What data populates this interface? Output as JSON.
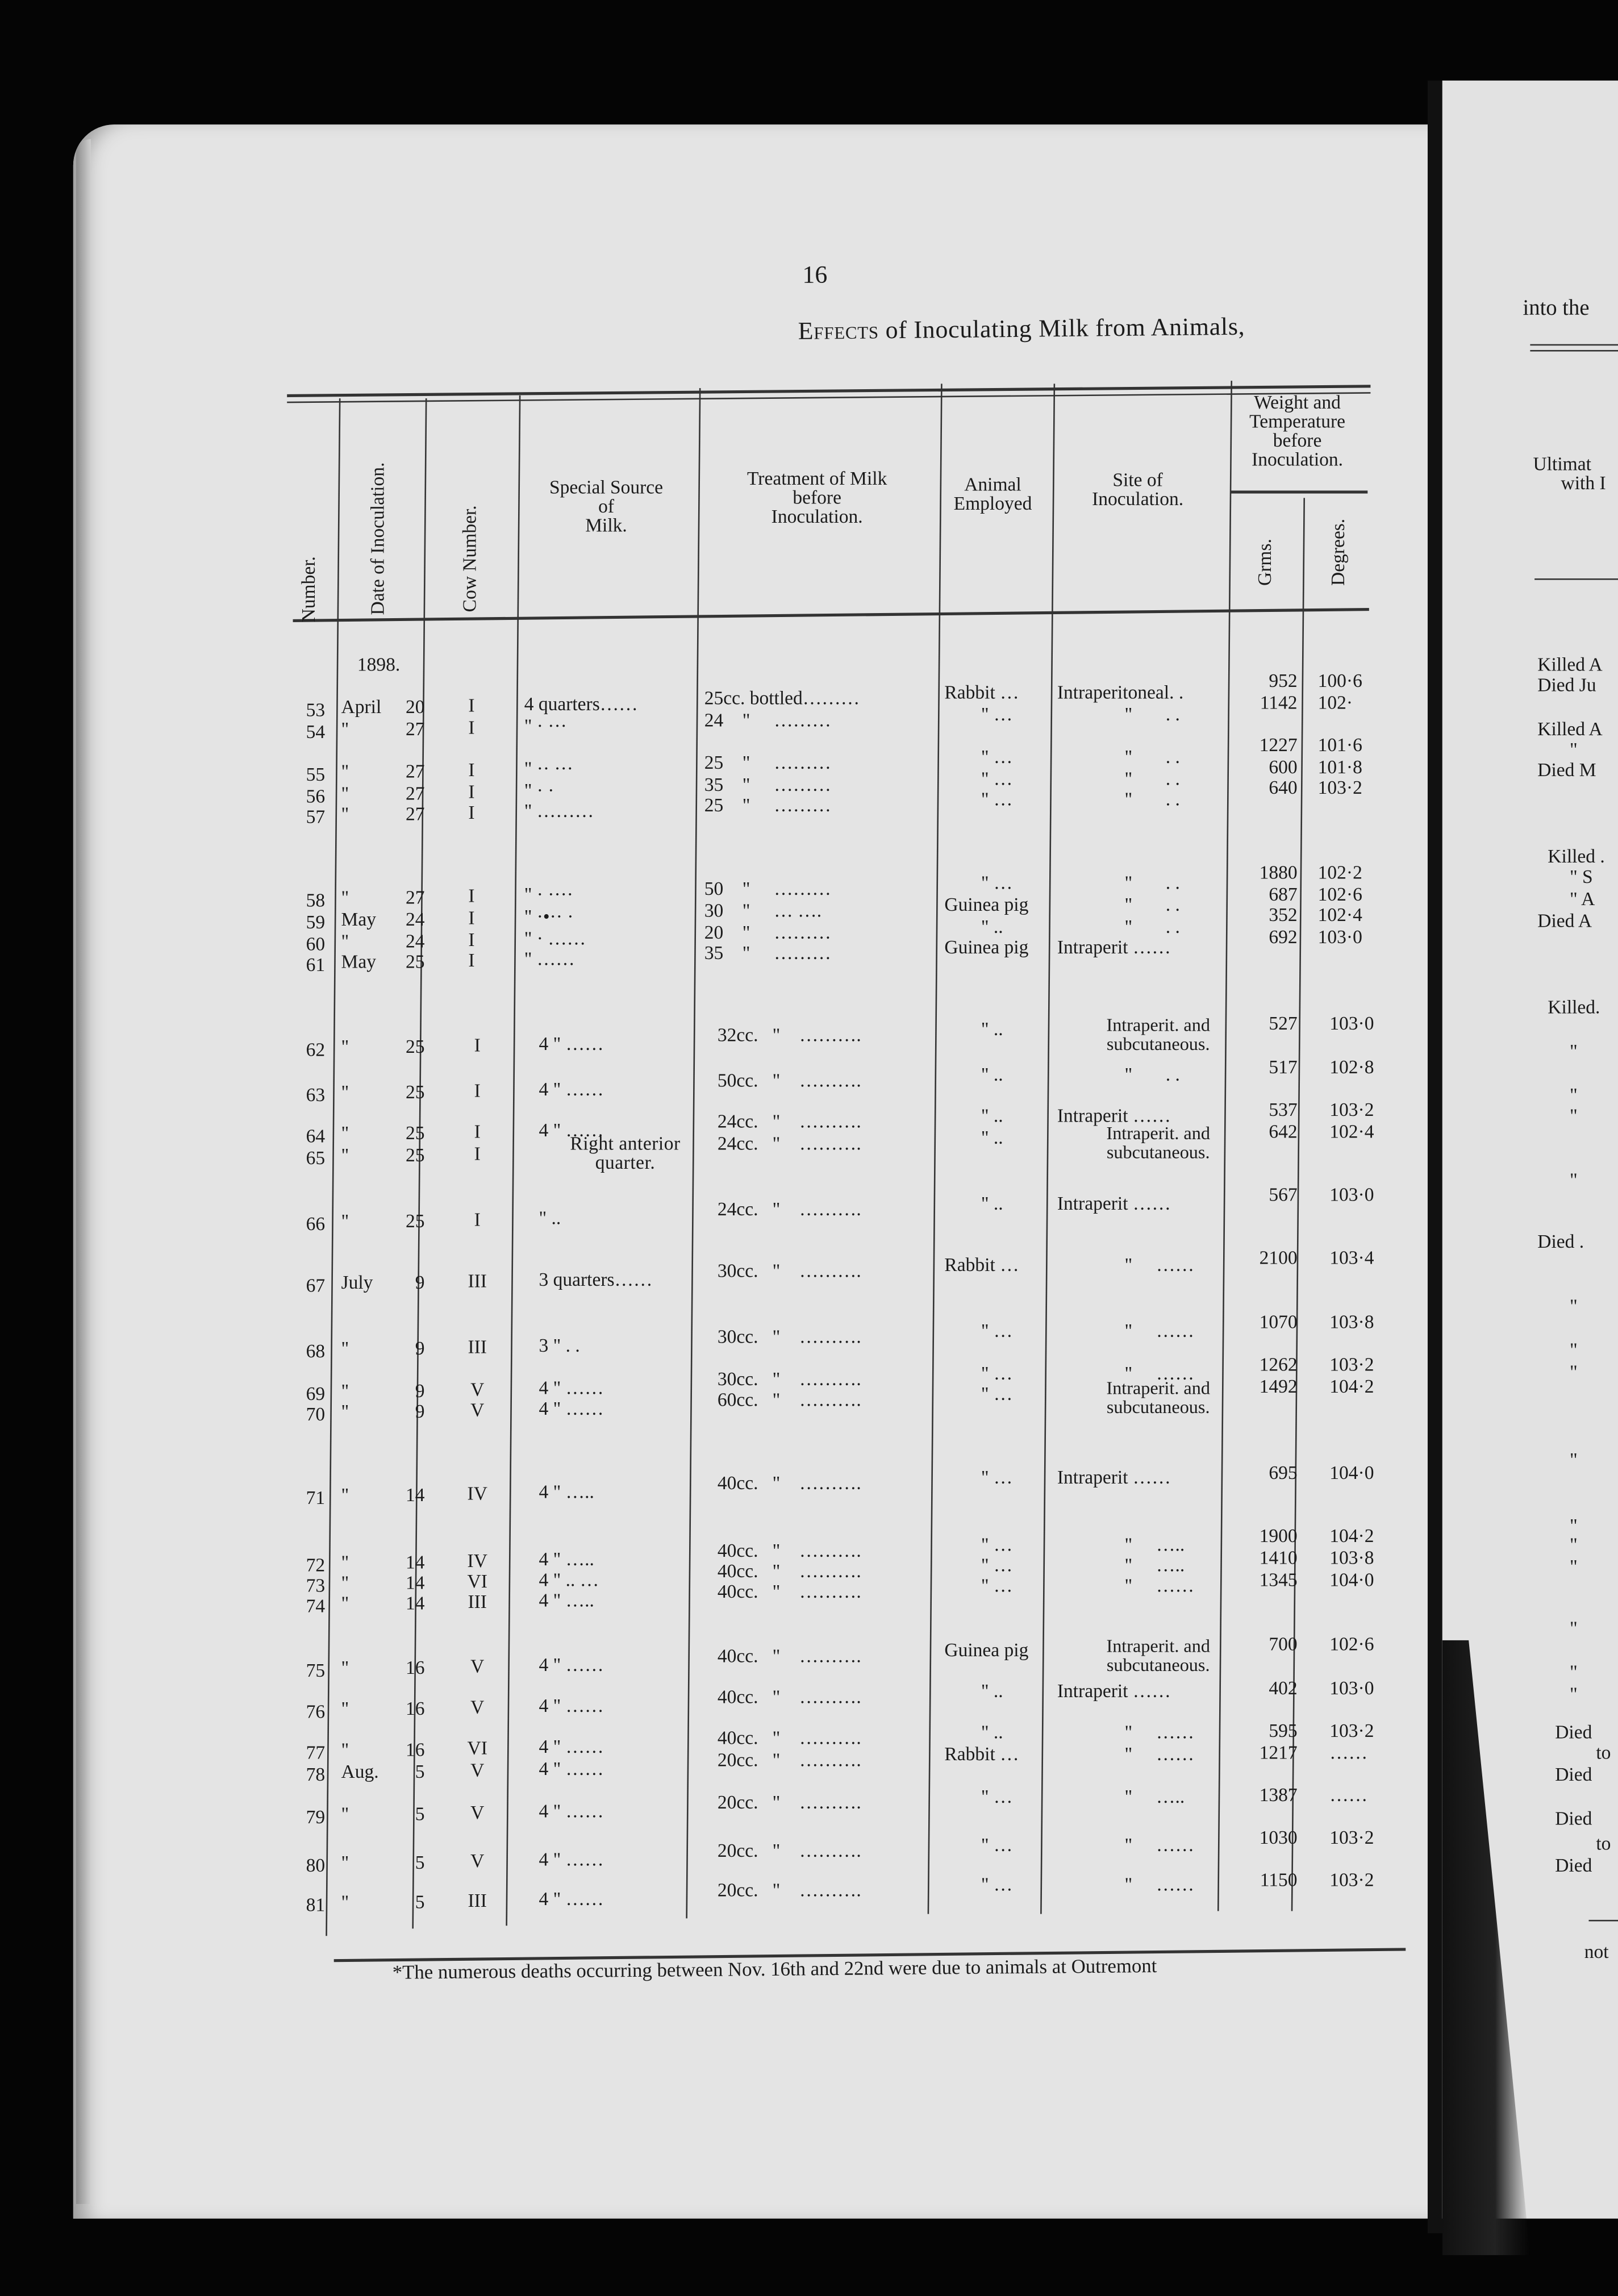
{
  "page_number": "16",
  "title": {
    "small_caps": "Effects",
    "rest": "of Inoculating Milk from Animals,"
  },
  "columns": {
    "number": "Number.",
    "date": "Date of Inoculation.",
    "cow": "Cow Number.",
    "source": [
      "Special Source",
      "of",
      "Milk."
    ],
    "treatment": [
      "Treatment of Milk",
      "before",
      "Inoculation."
    ],
    "animal": [
      "Animal",
      "Employed"
    ],
    "site": [
      "Site of",
      "Inoculation."
    ],
    "weight_temp": [
      "Weight and",
      "Temperature",
      "before",
      "Inoculation."
    ],
    "grms": "Grms.",
    "degrees": "Degrees."
  },
  "year": "1898.",
  "rows": [
    {
      "num": "53",
      "month": "April",
      "day": "20",
      "cow": "I",
      "source": "4 quarters……",
      "treatment": "25cc. bottled………",
      "animal": "Rabbit …",
      "site": "Intraperitoneal. .",
      "grms": "952",
      "deg": "100·6"
    },
    {
      "num": "54",
      "month": "\"",
      "day": "27",
      "cow": "I",
      "source": "\"   · ···",
      "treatment": "24    \"     ………",
      "animal": "\" …",
      "site": "\"       . .",
      "grms": "1142",
      "deg": "102·"
    },
    {
      "num": "55",
      "month": "\"",
      "day": "27",
      "cow": "I",
      "source": "\"   ·· ···",
      "treatment": "25    \"     ………",
      "animal": "\" …",
      "site": "\"       . .",
      "grms": "1227",
      "deg": "101·6"
    },
    {
      "num": "56",
      "month": "\"",
      "day": "27",
      "cow": "I",
      "source": "\"   ·  ·",
      "treatment": "35    \"     ………",
      "animal": "\" …",
      "site": "\"       . .",
      "grms": "600",
      "deg": "101·8"
    },
    {
      "num": "57",
      "month": "\"",
      "day": "27",
      "cow": "I",
      "source": "\"   ………",
      "treatment": "25    \"     ………",
      "animal": "\" …",
      "site": "\"       . .",
      "grms": "640",
      "deg": "103·2"
    },
    {
      "num": "58",
      "month": "\"",
      "day": "27",
      "cow": "I",
      "source": "\"   · ····",
      "treatment": "50    \"     ………",
      "animal": "\" …",
      "site": "\"       . .",
      "grms": "1880",
      "deg": "102·2"
    },
    {
      "num": "59",
      "month": "May",
      "day": "24",
      "cow": "I",
      "source": "\"   ·•·· ·",
      "treatment": "30    \"     … ….",
      "animal": "Guinea pig",
      "site": "\"       . .",
      "grms": "687",
      "deg": "102·6"
    },
    {
      "num": "60",
      "month": "\"",
      "day": "24",
      "cow": "I",
      "source": "\"   · ……",
      "treatment": "20    \"     ………",
      "animal": "\" ..",
      "site": "\"       . .",
      "grms": "352",
      "deg": "102·4"
    },
    {
      "num": "61",
      "month": "May",
      "day": "25",
      "cow": "I",
      "source": "\"   ……",
      "treatment": "35    \"     ………",
      "animal": "Guinea pig",
      "site": "Intraperit ……",
      "grms": "692",
      "deg": "103·0"
    },
    {
      "num": "62",
      "month": "\"",
      "day": "25",
      "cow": "I",
      "source": "4   \"    ……",
      "treatment": "32cc.   \"    ……….",
      "animal": "\" ..",
      "site": "Intraperit. and subcutaneous.",
      "grms": "527",
      "deg": "103·0"
    },
    {
      "num": "63",
      "month": "\"",
      "day": "25",
      "cow": "I",
      "source": "4   \"    ……",
      "treatment": "50cc.   \"    ……….",
      "animal": "\" ..",
      "site": "\"       . .",
      "grms": "517",
      "deg": "102·8"
    },
    {
      "num": "64",
      "month": "\"",
      "day": "25",
      "cow": "I",
      "source": "4   \"    ……",
      "treatment": "24cc.   \"    ……….",
      "animal": "\" ..",
      "site": "Intraperit ……",
      "grms": "537",
      "deg": "103·2"
    },
    {
      "num": "65",
      "month": "\"",
      "day": "25",
      "cow": "I",
      "source": "Right anterior quarter.",
      "treatment": "24cc.   \"    ……….",
      "animal": "\" ..",
      "site": "Intraperit. and subcutaneous.",
      "grms": "642",
      "deg": "102·4"
    },
    {
      "num": "66",
      "month": "\"",
      "day": "25",
      "cow": "I",
      "source": "\"    ..",
      "treatment": "24cc.   \"    ……….",
      "animal": "\" ..",
      "site": "Intraperit ……",
      "grms": "567",
      "deg": "103·0"
    },
    {
      "num": "67",
      "month": "July",
      "day": "9",
      "cow": "III",
      "source": "3 quarters……",
      "treatment": "30cc.   \"    ……….",
      "animal": "Rabbit …",
      "site": "\"     ……",
      "grms": "2100",
      "deg": "103·4"
    },
    {
      "num": "68",
      "month": "\"",
      "day": "9",
      "cow": "III",
      "source": "3   \"    . .",
      "treatment": "30cc.   \"    ……….",
      "animal": "\" …",
      "site": "\"     ……",
      "grms": "1070",
      "deg": "103·8"
    },
    {
      "num": "69",
      "month": "\"",
      "day": "9",
      "cow": "V",
      "source": "4   \"    ……",
      "treatment": "30cc.   \"    ……….",
      "animal": "\" …",
      "site": "\"     ……",
      "grms": "1262",
      "deg": "103·2"
    },
    {
      "num": "70",
      "month": "\"",
      "day": "9",
      "cow": "V",
      "source": "4   \"    ……",
      "treatment": "60cc.   \"    ……….",
      "animal": "\" …",
      "site": "Intraperit. and subcutaneous.",
      "grms": "1492",
      "deg": "104·2"
    },
    {
      "num": "71",
      "month": "\"",
      "day": "14",
      "cow": "IV",
      "source": "4   \"    …..",
      "treatment": "40cc.   \"    ……….",
      "animal": "\" …",
      "site": "Intraperit ……",
      "grms": "695",
      "deg": "104·0"
    },
    {
      "num": "72",
      "month": "\"",
      "day": "14",
      "cow": "IV",
      "source": "4   \"    …..",
      "treatment": "40cc.   \"    ……….",
      "animal": "\" …",
      "site": "\"     …..",
      "grms": "1900",
      "deg": "104·2"
    },
    {
      "num": "73",
      "month": "\"",
      "day": "14",
      "cow": "VI",
      "source": "4   \"    .. …",
      "treatment": "40cc.   \"    ……….",
      "animal": "\" …",
      "site": "\"     …..",
      "grms": "1410",
      "deg": "103·8"
    },
    {
      "num": "74",
      "month": "\"",
      "day": "14",
      "cow": "III",
      "source": "4   \"    …..",
      "treatment": "40cc.   \"    ……….",
      "animal": "\" …",
      "site": "\"     ……",
      "grms": "1345",
      "deg": "104·0"
    },
    {
      "num": "75",
      "month": "\"",
      "day": "16",
      "cow": "V",
      "source": "4   \"    ……",
      "treatment": "40cc.   \"    ……….",
      "animal": "Guinea pig",
      "site": "Intraperit. and subcutaneous.",
      "grms": "700",
      "deg": "102·6"
    },
    {
      "num": "76",
      "month": "\"",
      "day": "16",
      "cow": "V",
      "source": "4   \"    ……",
      "treatment": "40cc.   \"    ……….",
      "animal": "\" ..",
      "site": "Intraperit ……",
      "grms": "402",
      "deg": "103·0"
    },
    {
      "num": "77",
      "month": "\"",
      "day": "16",
      "cow": "VI",
      "source": "4   \"    ……",
      "treatment": "40cc.   \"    ……….",
      "animal": "\" ..",
      "site": "\"     ……",
      "grms": "595",
      "deg": "103·2"
    },
    {
      "num": "78",
      "month": "Aug.",
      "day": "5",
      "cow": "V",
      "source": "4   \"    ……",
      "treatment": "20cc.   \"    ……….",
      "animal": "Rabbit …",
      "site": "\"     ……",
      "grms": "1217",
      "deg": "……"
    },
    {
      "num": "79",
      "month": "\"",
      "day": "5",
      "cow": "V",
      "source": "4   \"    ……",
      "treatment": "20cc.   \"    ……….",
      "animal": "\" …",
      "site": "\"     …..",
      "grms": "1387",
      "deg": "……"
    },
    {
      "num": "80",
      "month": "\"",
      "day": "5",
      "cow": "V",
      "source": "4   \"    ……",
      "treatment": "20cc.   \"    ……….",
      "animal": "\" …",
      "site": "\"     ……",
      "grms": "1030",
      "deg": "103·2"
    },
    {
      "num": "81",
      "month": "\"",
      "day": "5",
      "cow": "III",
      "source": "4   \"    ……",
      "treatment": "20cc.   \"    ……….",
      "animal": "\" …",
      "site": "\"     ……",
      "grms": "1150",
      "deg": "103·2"
    }
  ],
  "footnote": "*The numerous deaths occurring between Nov. 16th and 22nd were due to animals at Outremont",
  "right_page": {
    "heading": "into the",
    "column_header": [
      "Ultimat",
      "with I"
    ],
    "results": [
      "Killed A",
      "Died Ju",
      "Killed A",
      "\"",
      "Died M",
      "Killed .",
      "\"   S",
      "\"   A",
      "Died A",
      "Killed.",
      "\"",
      "\"",
      "\"",
      "\"",
      "Died .",
      "\"",
      "\"",
      "\"",
      "\"",
      "\"",
      "\"",
      "\"",
      "\"",
      "\"",
      "\"",
      "Died",
      "to",
      "Died",
      "Died",
      "to",
      "Died"
    ],
    "footnote_fragment": "not"
  }
}
